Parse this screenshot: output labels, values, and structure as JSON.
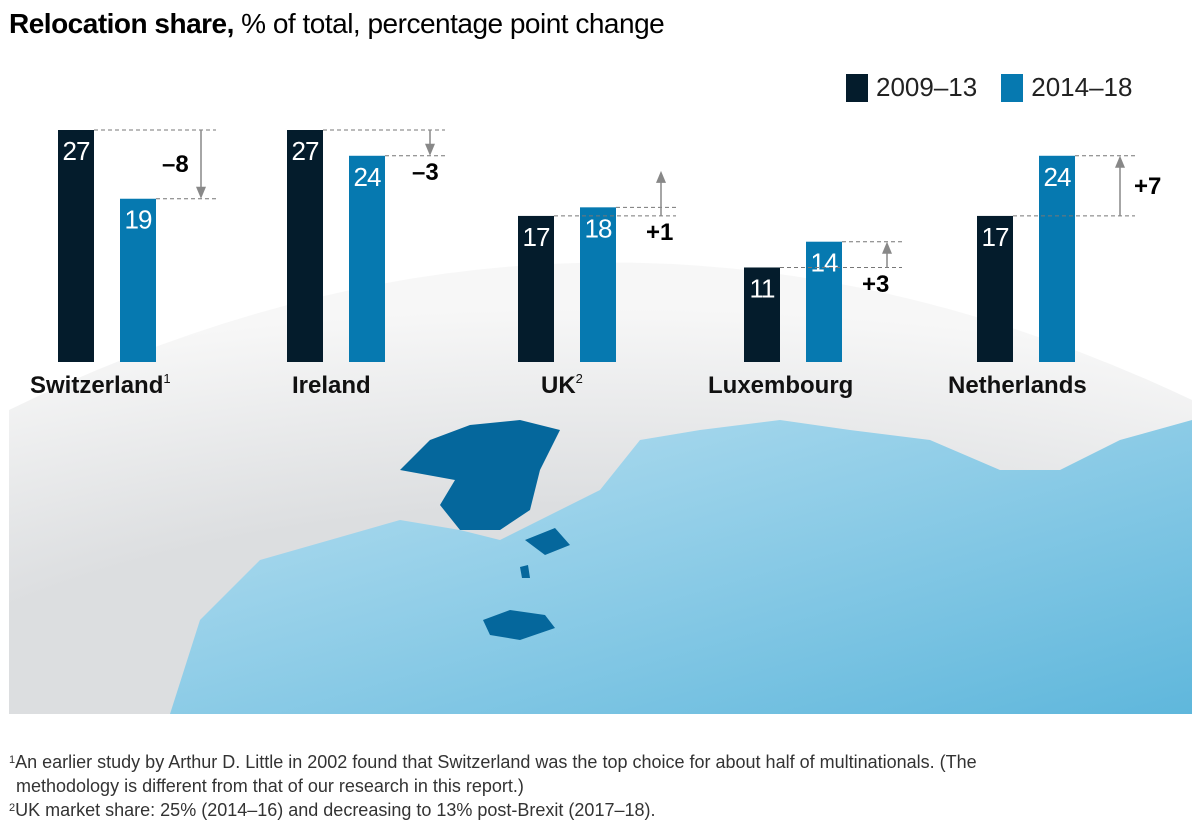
{
  "title": {
    "bold": "Relocation share,",
    "rest": " % of total, percentage point change"
  },
  "colors": {
    "period1": "#041c2c",
    "period2": "#0679b0",
    "land": "#8fcbe6",
    "highlight": "#05679c"
  },
  "chart_data": {
    "type": "bar",
    "title": "Relocation share, % of total, percentage point change",
    "categories": [
      "Switzerland",
      "Ireland",
      "UK",
      "Luxembourg",
      "Netherlands"
    ],
    "category_superscripts": [
      "1",
      "",
      "2",
      "",
      ""
    ],
    "series": [
      {
        "name": "2009–13",
        "values": [
          27,
          27,
          17,
          11,
          17
        ]
      },
      {
        "name": "2014–18",
        "values": [
          19,
          24,
          18,
          14,
          24
        ]
      }
    ],
    "changes": [
      "–8",
      "–3",
      "+1",
      "+3",
      "+7"
    ],
    "legend_position": "top-right",
    "grid": false
  },
  "footnotes": [
    {
      "mark": "1",
      "text": "An earlier study by Arthur D. Little in 2002 found that Switzerland was the top choice for about half of multinationals. (The"
    },
    {
      "mark": "",
      "text": "methodology is different from that of our research in this report.)"
    },
    {
      "mark": "2",
      "text": "UK market share: 25% (2014–16) and decreasing to 13% post-Brexit (2017–18)."
    }
  ]
}
